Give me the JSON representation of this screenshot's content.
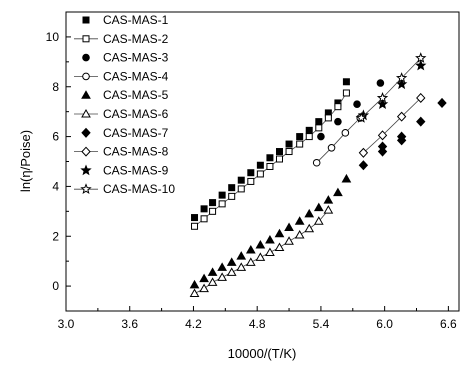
{
  "chart_data": {
    "type": "scatter",
    "xlabel": "10000/(T/K)",
    "ylabel": "ln(η/Poise)",
    "xlim": [
      3.0,
      6.7
    ],
    "ylim": [
      -1.0,
      11.0
    ],
    "xticks": [
      "3.0",
      "3.6",
      "4.2",
      "4.8",
      "5.4",
      "6.0",
      "6.6"
    ],
    "xtick_values": [
      3.0,
      3.6,
      4.2,
      4.8,
      5.4,
      6.0,
      6.6
    ],
    "yticks": [
      "0",
      "2",
      "4",
      "6",
      "8",
      "10"
    ],
    "ytick_values": [
      0,
      2,
      4,
      6,
      8,
      10
    ],
    "grid": false,
    "legend_position": "top-left",
    "series": [
      {
        "name": "CAS-MAS-1",
        "marker": "square",
        "filled": true,
        "line": false,
        "x": [
          4.21,
          4.3,
          4.38,
          4.47,
          4.56,
          4.65,
          4.74,
          4.83,
          4.92,
          5.01,
          5.1,
          5.2,
          5.29,
          5.38,
          5.47,
          5.56,
          5.64
        ],
        "y": [
          2.75,
          3.1,
          3.35,
          3.65,
          3.95,
          4.25,
          4.55,
          4.85,
          5.15,
          5.4,
          5.7,
          6.0,
          6.25,
          6.6,
          6.95,
          7.35,
          8.2
        ]
      },
      {
        "name": "CAS-MAS-2",
        "marker": "square",
        "filled": false,
        "line": true,
        "x": [
          4.21,
          4.3,
          4.38,
          4.47,
          4.56,
          4.65,
          4.74,
          4.83,
          4.92,
          5.01,
          5.1,
          5.2,
          5.29,
          5.38,
          5.47,
          5.56,
          5.64
        ],
        "y": [
          2.4,
          2.7,
          3.0,
          3.3,
          3.6,
          3.9,
          4.2,
          4.5,
          4.8,
          5.1,
          5.4,
          5.7,
          6.0,
          6.35,
          6.75,
          7.2,
          7.75
        ]
      },
      {
        "name": "CAS-MAS-3",
        "marker": "circle",
        "filled": true,
        "line": false,
        "x": [
          5.4,
          5.56,
          5.74,
          5.96
        ],
        "y": [
          6.0,
          6.6,
          7.3,
          8.15
        ]
      },
      {
        "name": "CAS-MAS-4",
        "marker": "circle",
        "filled": false,
        "line": true,
        "x": [
          5.36,
          5.5,
          5.63,
          5.77
        ],
        "y": [
          4.95,
          5.55,
          6.15,
          6.75
        ]
      },
      {
        "name": "CAS-MAS-5",
        "marker": "triangle",
        "filled": true,
        "line": false,
        "x": [
          4.21,
          4.3,
          4.38,
          4.47,
          4.56,
          4.65,
          4.74,
          4.83,
          4.92,
          5.01,
          5.1,
          5.2,
          5.29,
          5.38,
          5.47,
          5.56,
          5.64
        ],
        "y": [
          0.05,
          0.3,
          0.55,
          0.75,
          0.95,
          1.2,
          1.45,
          1.65,
          1.85,
          2.1,
          2.35,
          2.6,
          2.9,
          3.15,
          3.45,
          3.75,
          4.3
        ]
      },
      {
        "name": "CAS-MAS-6",
        "marker": "triangle",
        "filled": false,
        "line": true,
        "x": [
          4.21,
          4.3,
          4.38,
          4.47,
          4.56,
          4.65,
          4.74,
          4.83,
          4.92,
          5.01,
          5.1,
          5.2,
          5.29,
          5.38,
          5.47
        ],
        "y": [
          -0.3,
          -0.1,
          0.15,
          0.35,
          0.55,
          0.75,
          0.95,
          1.15,
          1.35,
          1.55,
          1.8,
          2.05,
          2.3,
          2.6,
          3.05
        ]
      },
      {
        "name": "CAS-MAS-7",
        "marker": "diamond",
        "filled": true,
        "line": false,
        "x": [
          5.8,
          5.98,
          5.98,
          6.16,
          6.16,
          6.34,
          6.54
        ],
        "y": [
          4.85,
          5.4,
          5.6,
          5.85,
          6.0,
          6.6,
          7.35
        ]
      },
      {
        "name": "CAS-MAS-8",
        "marker": "diamond",
        "filled": false,
        "line": true,
        "x": [
          5.8,
          5.98,
          6.16,
          6.34
        ],
        "y": [
          5.35,
          6.05,
          6.8,
          7.55
        ]
      },
      {
        "name": "CAS-MAS-9",
        "marker": "star",
        "filled": true,
        "line": false,
        "x": [
          5.8,
          5.98,
          6.16,
          6.34
        ],
        "y": [
          6.85,
          7.3,
          8.1,
          8.85
        ]
      },
      {
        "name": "CAS-MAS-10",
        "marker": "star",
        "filled": false,
        "line": true,
        "x": [
          5.78,
          5.98,
          6.16,
          6.34
        ],
        "y": [
          6.75,
          7.55,
          8.35,
          9.15
        ]
      }
    ]
  }
}
